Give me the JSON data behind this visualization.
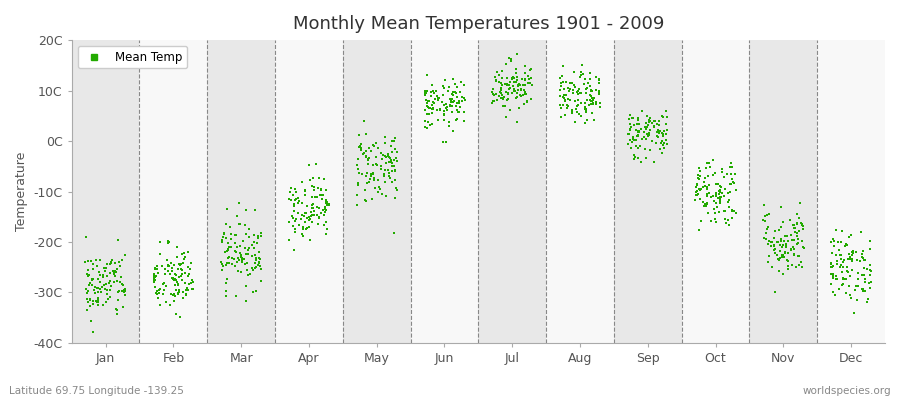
{
  "title": "Monthly Mean Temperatures 1901 - 2009",
  "ylabel": "Temperature",
  "subtitle_left": "Latitude 69.75 Longitude -139.25",
  "subtitle_right": "worldspecies.org",
  "legend_label": "Mean Temp",
  "dot_color": "#22aa00",
  "background_color": "#ffffff",
  "plot_bg_color": "#f0f0f0",
  "stripe_color_light": "#f8f8f8",
  "stripe_color_dark": "#e8e8e8",
  "ylim": [
    -40,
    20
  ],
  "yticks": [
    -40,
    -30,
    -20,
    -10,
    0,
    10,
    20
  ],
  "ytick_labels": [
    "-40C",
    "-30C",
    "-20C",
    "-10C",
    "0C",
    "10C",
    "20C"
  ],
  "months": [
    "Jan",
    "Feb",
    "Mar",
    "Apr",
    "May",
    "Jun",
    "Jul",
    "Aug",
    "Sep",
    "Oct",
    "Nov",
    "Dec"
  ],
  "month_means": [
    -28.5,
    -27.5,
    -22,
    -13,
    -5,
    7,
    11,
    8.5,
    1.5,
    -10,
    -20,
    -25
  ],
  "month_stds": [
    3.5,
    3.5,
    3.5,
    3.2,
    3.8,
    2.5,
    2.5,
    2.5,
    2.5,
    3.5,
    3.5,
    3.5
  ],
  "n_points": 109,
  "random_seed": 42
}
